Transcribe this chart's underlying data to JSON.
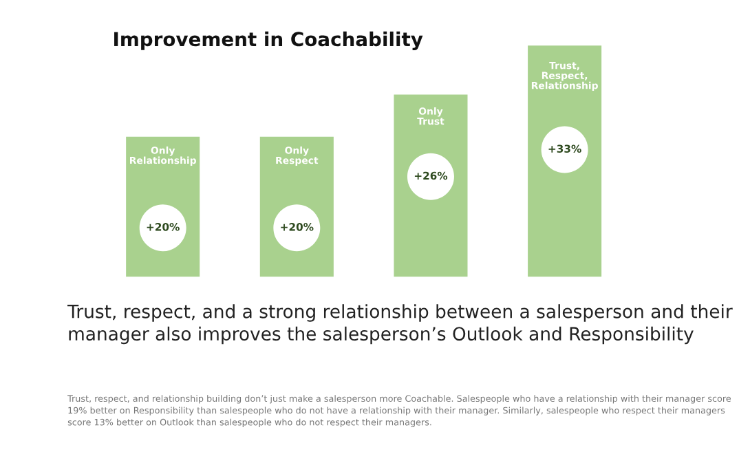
{
  "chart_data": {
    "type": "bar",
    "title": "Improvement in Coachability",
    "categories": [
      "Only Relationship",
      "Only Respect",
      "Only Trust",
      "Trust, Respect, Relationship"
    ],
    "values": [
      20,
      20,
      26,
      33
    ],
    "value_labels": [
      "+20%",
      "+20%",
      "+26%",
      "+33%"
    ],
    "color": "#a9d18e",
    "annotations": [
      "Trust, respect, and a strong relationship between a salesperson and their manager also improves the salesperson’s Outlook and Responsibility",
      "Trust, respect, and relationship building don’t just make a salesperson more Coachable. Salespeople who have a relationship with their manager score 19% better on Responsibility than salespeople who do not have a relationship with their manager. Similarly, salespeople who respect their managers score 13% better on Outlook than salespeople who do not respect their managers."
    ]
  }
}
